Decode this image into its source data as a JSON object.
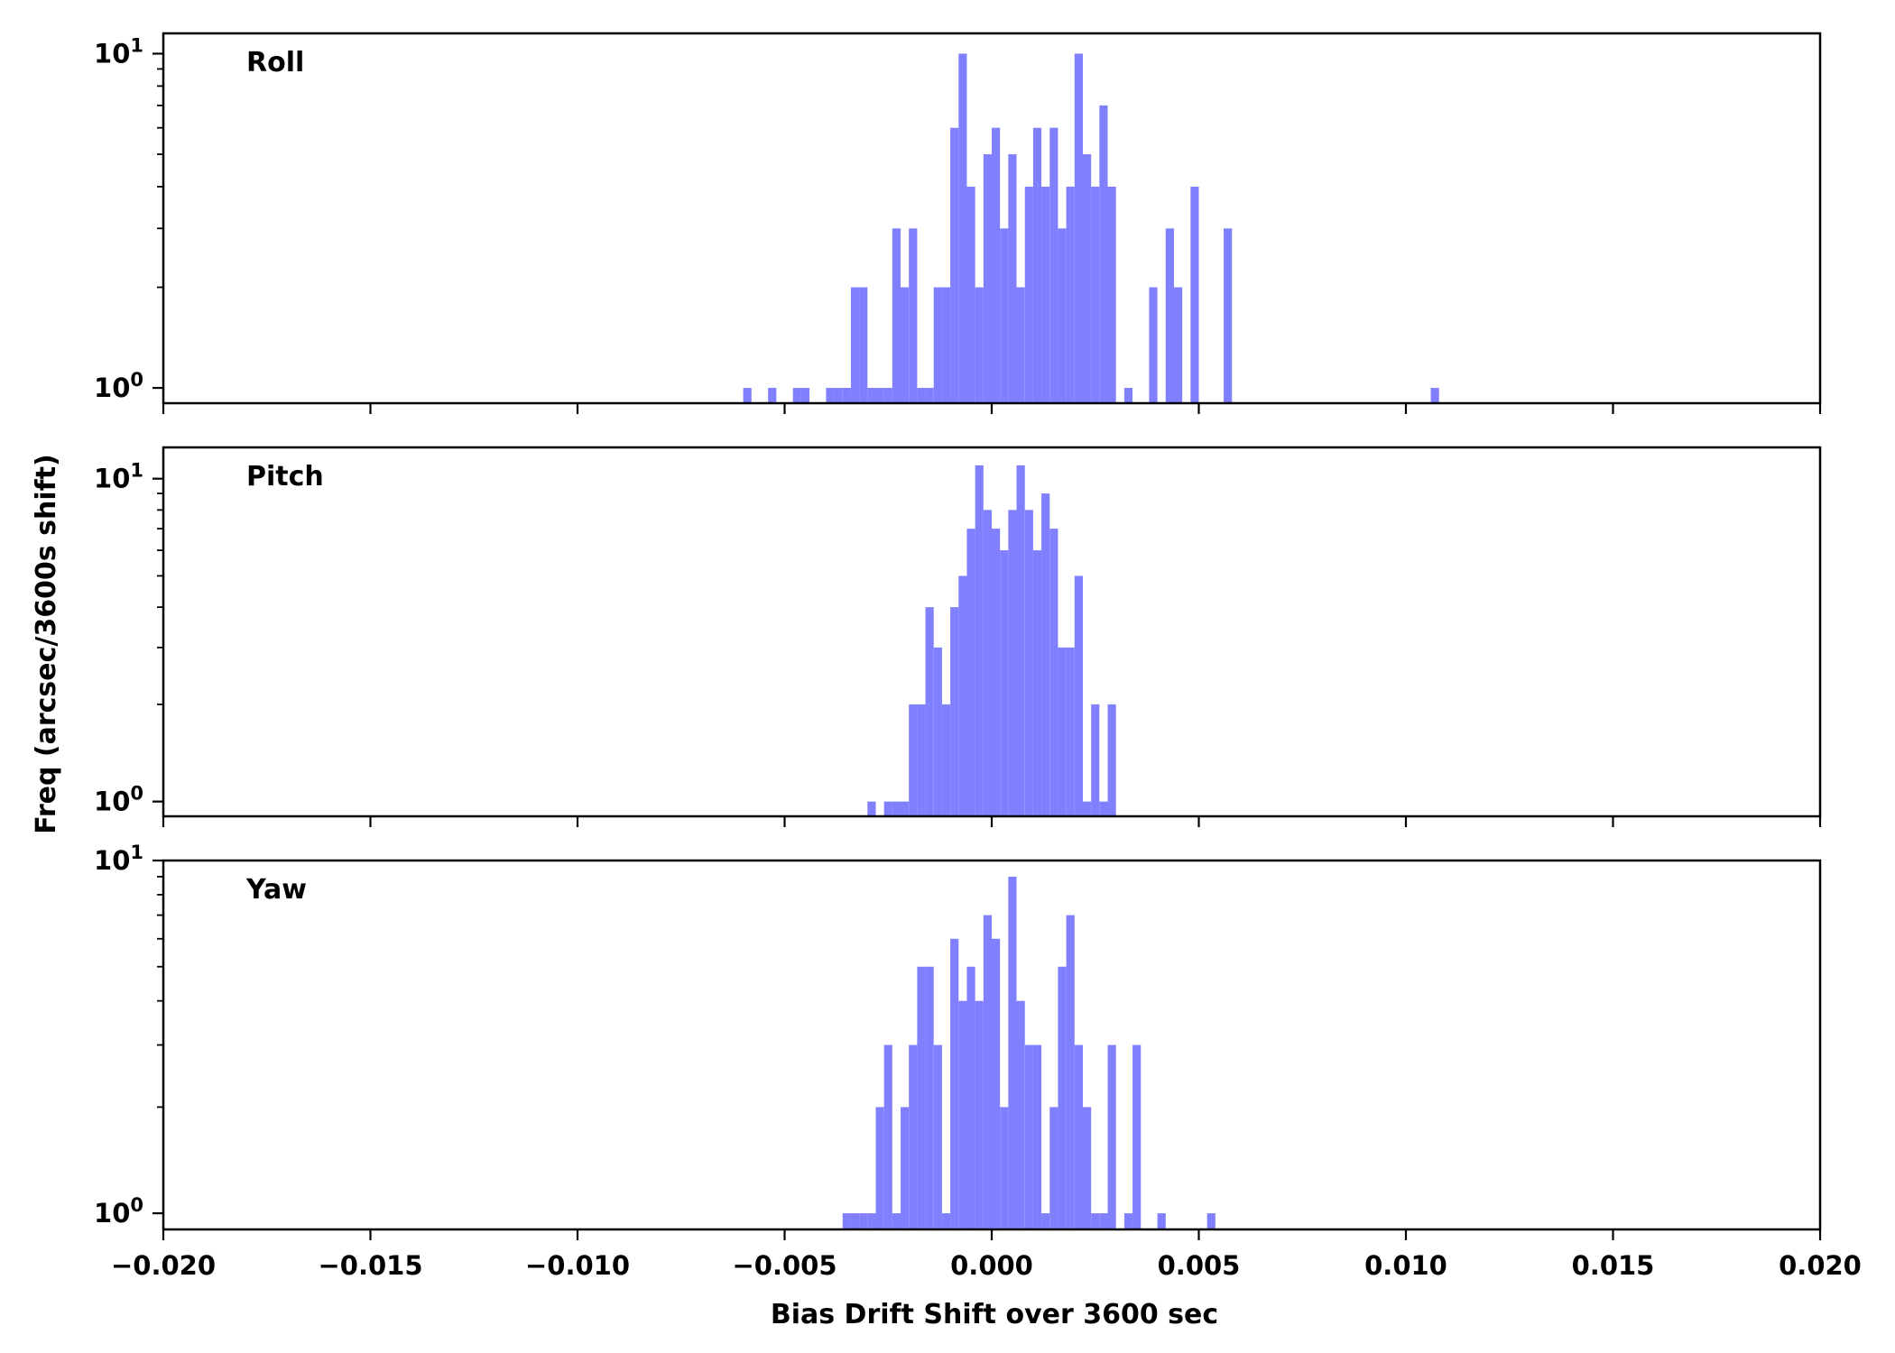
{
  "chart_data": {
    "type": "bar",
    "xlabel": "Bias Drift Shift over 3600 sec",
    "ylabel": "Freq (arcsec/3600s shift)",
    "xlim": [
      -0.02,
      0.02
    ],
    "x_ticks": [
      "−0.020",
      "−0.015",
      "−0.010",
      "−0.005",
      "0.000",
      "0.005",
      "0.010",
      "0.015",
      "0.020"
    ],
    "y_scale": "log",
    "y_ticks": [
      "10",
      "10"
    ],
    "y_tick_exponents": [
      "1",
      "0"
    ],
    "bar_color": "#8080ff",
    "bin_width": 0.0002,
    "grid": false,
    "panels": [
      {
        "label": "Roll",
        "ylim": [
          0.9,
          11.5
        ],
        "x": [
          -0.006,
          -0.0054,
          -0.0048,
          -0.0046,
          -0.004,
          -0.0038,
          -0.0036,
          -0.0034,
          -0.0032,
          -0.003,
          -0.0028,
          -0.0026,
          -0.0024,
          -0.0022,
          -0.002,
          -0.0018,
          -0.0016,
          -0.0014,
          -0.0012,
          -0.001,
          -0.0008,
          -0.0006,
          -0.0004,
          -0.0002,
          0.0,
          0.0002,
          0.0004,
          0.0006,
          0.0008,
          0.001,
          0.0012,
          0.0014,
          0.0016,
          0.0018,
          0.002,
          0.0022,
          0.0024,
          0.0026,
          0.0028,
          0.0032,
          0.0038,
          0.0042,
          0.0044,
          0.0048,
          0.0056,
          0.0106
        ],
        "values": [
          1,
          1,
          1,
          1,
          1,
          1,
          1,
          2,
          2,
          1,
          1,
          1,
          3,
          2,
          3,
          1,
          1,
          2,
          2,
          6,
          10,
          4,
          2,
          5,
          6,
          3,
          5,
          2,
          4,
          6,
          4,
          6,
          3,
          4,
          10,
          5,
          4,
          7,
          4,
          1,
          2,
          3,
          2,
          4,
          3,
          1
        ]
      },
      {
        "label": "Pitch",
        "ylim": [
          0.9,
          12.5
        ],
        "x": [
          -0.003,
          -0.0026,
          -0.0024,
          -0.0022,
          -0.002,
          -0.0018,
          -0.0016,
          -0.0014,
          -0.0012,
          -0.001,
          -0.0008,
          -0.0006,
          -0.0004,
          -0.0002,
          0.0,
          0.0002,
          0.0004,
          0.0006,
          0.0008,
          0.001,
          0.0012,
          0.0014,
          0.0016,
          0.0018,
          0.002,
          0.0022,
          0.0024,
          0.0026,
          0.0028
        ],
        "values": [
          1,
          1,
          1,
          1,
          2,
          2,
          4,
          3,
          2,
          4,
          5,
          7,
          11,
          8,
          7,
          6,
          8,
          11,
          8,
          6,
          9,
          7,
          3,
          3,
          5,
          1,
          2,
          1,
          2
        ]
      },
      {
        "label": "Yaw",
        "ylim": [
          0.9,
          10.0
        ],
        "x": [
          -0.0036,
          -0.0034,
          -0.0032,
          -0.003,
          -0.0028,
          -0.0026,
          -0.0024,
          -0.0022,
          -0.002,
          -0.0018,
          -0.0016,
          -0.0014,
          -0.0012,
          -0.001,
          -0.0008,
          -0.0006,
          -0.0004,
          -0.0002,
          0.0,
          0.0002,
          0.0004,
          0.0006,
          0.0008,
          0.001,
          0.0012,
          0.0014,
          0.0016,
          0.0018,
          0.002,
          0.0022,
          0.0024,
          0.0026,
          0.0028,
          0.0032,
          0.0034,
          0.004,
          0.0052
        ],
        "values": [
          1,
          1,
          1,
          1,
          2,
          3,
          1,
          2,
          3,
          5,
          5,
          3,
          1,
          6,
          4,
          5,
          4,
          7,
          6,
          2,
          9,
          4,
          3,
          3,
          1,
          2,
          5,
          7,
          3,
          2,
          1,
          1,
          3,
          1,
          3,
          1,
          1
        ]
      }
    ]
  }
}
